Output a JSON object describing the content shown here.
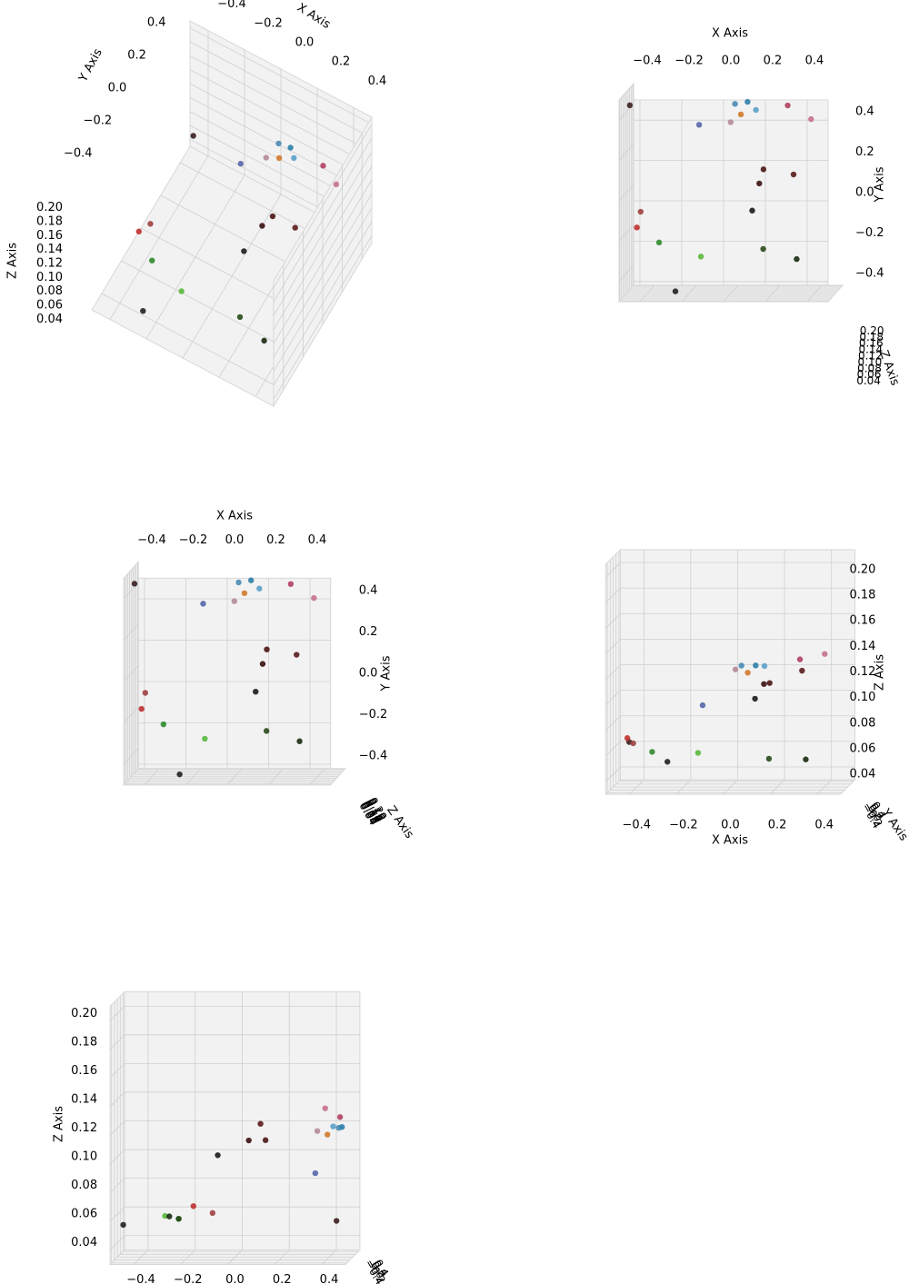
{
  "chart_data": [
    {
      "type": "scatter3d",
      "xlabel": "X Axis",
      "ylabel": "Y Axis",
      "zlabel": "Z Axis",
      "xlim": [
        -0.5,
        0.5
      ],
      "ylim": [
        -0.5,
        0.5
      ],
      "zlim": [
        0.03,
        0.21
      ],
      "xticks": [
        {
          "value": -0.4,
          "label": "−0.4"
        },
        {
          "value": -0.2,
          "label": "−0.2"
        },
        {
          "value": 0,
          "label": "0.0"
        },
        0.2,
        0.4
      ],
      "yticks": [
        {
          "value": -0.4,
          "label": "−0.4"
        },
        {
          "value": -0.2,
          "label": "−0.2"
        },
        {
          "value": 0,
          "label": "0.0"
        },
        0.2,
        0.4
      ],
      "zticks": [
        0.04,
        0.06,
        0.08,
        {
          "value": 0.1,
          "label": "0.10"
        },
        0.12,
        0.14,
        0.16,
        0.18,
        {
          "value": 0.2,
          "label": "0.20"
        }
      ],
      "x": [
        -0.46,
        -0.14,
        0.02,
        0.08,
        0.05,
        0.12,
        0.0,
        0.27,
        0.38,
        0.14,
        0.16,
        0.3,
        -0.43,
        -0.41,
        -0.12,
        -0.32,
        0.18,
        0.34,
        -0.24,
        0.11
      ],
      "y": [
        0.46,
        0.35,
        0.44,
        0.45,
        0.39,
        0.41,
        0.35,
        0.43,
        0.36,
        0.05,
        0.12,
        0.09,
        -0.15,
        -0.07,
        -0.29,
        -0.22,
        -0.25,
        -0.3,
        -0.46,
        -0.08
      ],
      "z": [
        0.06,
        0.09,
        0.12,
        0.12,
        0.115,
        0.12,
        0.118,
        0.125,
        0.13,
        0.11,
        0.11,
        0.12,
        0.07,
        0.065,
        0.06,
        0.06,
        0.055,
        0.055,
        0.055,
        0.1
      ],
      "colors": [
        "#3b1f1f",
        "#5566aa",
        "#4a8ab5",
        "#2e7fa8",
        "#d07a2a",
        "#5aa0c8",
        "#b58a9a",
        "#b04060",
        "#c77090",
        "#3a1010",
        "#4a1515",
        "#5a1a1a",
        "#c03030",
        "#a04040",
        "#5ab83c",
        "#2e8b2e",
        "#2a4a1a",
        "#1a2a10",
        "#202020",
        "#1a1a1a"
      ]
    },
    {
      "type": "scatter3d",
      "xlabel": "X Axis",
      "ylabel": "Y Axis",
      "zlabel": "Z Axis",
      "xlim": [
        -0.5,
        0.5
      ],
      "ylim": [
        -0.5,
        0.5
      ],
      "zlim": [
        0.03,
        0.21
      ],
      "xticks": [
        {
          "value": -0.4,
          "label": "−0.4"
        },
        {
          "value": -0.2,
          "label": "−0.2"
        },
        {
          "value": 0,
          "label": "0.0"
        },
        0.2,
        0.4
      ],
      "yticks": [
        {
          "value": -0.4,
          "label": "−0.4"
        },
        {
          "value": -0.2,
          "label": "−0.2"
        },
        {
          "value": 0,
          "label": "0.0"
        },
        0.2,
        0.4
      ],
      "zticks": [
        0.04,
        0.06,
        0.08,
        {
          "value": 0.1,
          "label": "0.10"
        },
        0.12,
        0.14,
        0.16,
        0.18,
        {
          "value": 0.2,
          "label": "0.20"
        }
      ],
      "x": [
        -0.46,
        -0.14,
        0.02,
        0.08,
        0.05,
        0.12,
        0.0,
        0.27,
        0.38,
        0.14,
        0.16,
        0.3,
        -0.43,
        -0.41,
        -0.12,
        -0.32,
        0.18,
        0.34,
        -0.24,
        0.11
      ],
      "y": [
        0.46,
        0.35,
        0.44,
        0.45,
        0.39,
        0.41,
        0.35,
        0.43,
        0.36,
        0.05,
        0.12,
        0.09,
        -0.15,
        -0.07,
        -0.29,
        -0.22,
        -0.25,
        -0.3,
        -0.46,
        -0.08
      ],
      "z": [
        0.06,
        0.09,
        0.12,
        0.12,
        0.115,
        0.12,
        0.118,
        0.125,
        0.13,
        0.11,
        0.11,
        0.12,
        0.07,
        0.065,
        0.06,
        0.06,
        0.055,
        0.055,
        0.055,
        0.1
      ],
      "colors": [
        "#3b1f1f",
        "#5566aa",
        "#4a8ab5",
        "#2e7fa8",
        "#d07a2a",
        "#5aa0c8",
        "#b58a9a",
        "#b04060",
        "#c77090",
        "#3a1010",
        "#4a1515",
        "#5a1a1a",
        "#c03030",
        "#a04040",
        "#5ab83c",
        "#2e8b2e",
        "#2a4a1a",
        "#1a2a10",
        "#202020",
        "#1a1a1a"
      ]
    },
    {
      "type": "scatter3d",
      "xlabel": "X Axis",
      "ylabel": "Y Axis",
      "zlabel": "Z Axis",
      "xlim": [
        -0.5,
        0.5
      ],
      "ylim": [
        -0.5,
        0.5
      ],
      "zlim": [
        0.03,
        0.21
      ],
      "xticks": [
        {
          "value": -0.4,
          "label": "−0.4"
        },
        {
          "value": -0.2,
          "label": "−0.2"
        },
        {
          "value": 0,
          "label": "0.0"
        },
        0.2,
        0.4
      ],
      "yticks": [
        {
          "value": -0.4,
          "label": "−0.4"
        },
        {
          "value": -0.2,
          "label": "−0.2"
        },
        {
          "value": 0,
          "label": "0.0"
        },
        0.2,
        0.4
      ],
      "zticks": [
        0.04,
        0.06,
        0.08,
        {
          "value": 0.1,
          "label": "0.10"
        },
        0.12,
        0.14,
        0.16,
        0.18,
        {
          "value": 0.2,
          "label": "0.20"
        }
      ],
      "x": [
        -0.46,
        -0.14,
        0.02,
        0.08,
        0.05,
        0.12,
        0.0,
        0.27,
        0.38,
        0.14,
        0.16,
        0.3,
        -0.43,
        -0.41,
        -0.12,
        -0.32,
        0.18,
        0.34,
        -0.24,
        0.11
      ],
      "y": [
        0.46,
        0.35,
        0.44,
        0.45,
        0.39,
        0.41,
        0.35,
        0.43,
        0.36,
        0.05,
        0.12,
        0.09,
        -0.15,
        -0.07,
        -0.29,
        -0.22,
        -0.25,
        -0.3,
        -0.46,
        -0.08
      ],
      "z": [
        0.06,
        0.09,
        0.12,
        0.12,
        0.115,
        0.12,
        0.118,
        0.125,
        0.13,
        0.11,
        0.11,
        0.12,
        0.07,
        0.065,
        0.06,
        0.06,
        0.055,
        0.055,
        0.055,
        0.1
      ],
      "colors": [
        "#3b1f1f",
        "#5566aa",
        "#4a8ab5",
        "#2e7fa8",
        "#d07a2a",
        "#5aa0c8",
        "#b58a9a",
        "#b04060",
        "#c77090",
        "#3a1010",
        "#4a1515",
        "#5a1a1a",
        "#c03030",
        "#a04040",
        "#5ab83c",
        "#2e8b2e",
        "#2a4a1a",
        "#1a2a10",
        "#202020",
        "#1a1a1a"
      ]
    },
    {
      "type": "scatter3d",
      "xlabel": "X Axis",
      "ylabel": "Y Axis",
      "zlabel": "Z Axis",
      "xlim": [
        -0.5,
        0.5
      ],
      "ylim": [
        -0.5,
        0.5
      ],
      "zlim": [
        0.03,
        0.21
      ],
      "xticks": [
        {
          "value": -0.4,
          "label": "−0.4"
        },
        {
          "value": -0.2,
          "label": "−0.2"
        },
        {
          "value": 0,
          "label": "0.0"
        },
        0.2,
        0.4
      ],
      "yticks": [
        {
          "value": -0.4,
          "label": "−0.4"
        },
        {
          "value": -0.2,
          "label": "−0.2"
        },
        {
          "value": 0,
          "label": "0.0"
        },
        0.2,
        0.4
      ],
      "zticks": [
        0.04,
        0.06,
        0.08,
        {
          "value": 0.1,
          "label": "0.10"
        },
        0.12,
        0.14,
        0.16,
        0.18,
        {
          "value": 0.2,
          "label": "0.20"
        }
      ],
      "x": [
        -0.46,
        -0.14,
        0.02,
        0.08,
        0.05,
        0.12,
        0.0,
        0.27,
        0.38,
        0.14,
        0.16,
        0.3,
        -0.43,
        -0.41,
        -0.12,
        -0.32,
        0.18,
        0.34,
        -0.24,
        0.11
      ],
      "y": [
        0.46,
        0.35,
        0.44,
        0.45,
        0.39,
        0.41,
        0.35,
        0.43,
        0.36,
        0.05,
        0.12,
        0.09,
        -0.15,
        -0.07,
        -0.29,
        -0.22,
        -0.25,
        -0.3,
        -0.46,
        -0.08
      ],
      "z": [
        0.06,
        0.09,
        0.12,
        0.12,
        0.115,
        0.12,
        0.118,
        0.125,
        0.13,
        0.11,
        0.11,
        0.12,
        0.07,
        0.065,
        0.06,
        0.06,
        0.055,
        0.055,
        0.055,
        0.1
      ],
      "colors": [
        "#3b1f1f",
        "#5566aa",
        "#4a8ab5",
        "#2e7fa8",
        "#d07a2a",
        "#5aa0c8",
        "#b58a9a",
        "#b04060",
        "#c77090",
        "#3a1010",
        "#4a1515",
        "#5a1a1a",
        "#c03030",
        "#a04040",
        "#5ab83c",
        "#2e8b2e",
        "#2a4a1a",
        "#1a2a10",
        "#202020",
        "#1a1a1a"
      ]
    },
    {
      "type": "scatter3d",
      "zlabel": "Z Axis",
      "xlim": [
        -0.5,
        0.5
      ],
      "ylim": [
        -0.5,
        0.5
      ],
      "zlim": [
        0.03,
        0.21
      ],
      "xticks": [
        {
          "value": -0.4,
          "label": "−0.4"
        },
        {
          "value": -0.2,
          "label": "−0.2"
        },
        {
          "value": 0,
          "label": "0.0"
        },
        0.2,
        0.4
      ],
      "yticks": [
        {
          "value": -0.4,
          "label": "−0.4"
        },
        {
          "value": -0.2,
          "label": "−0.2"
        },
        {
          "value": 0,
          "label": "0.0"
        },
        0.2,
        0.4
      ],
      "zticks": [
        0.04,
        0.06,
        0.08,
        {
          "value": 0.1,
          "label": "0.10"
        },
        0.12,
        0.14,
        0.16,
        0.18,
        {
          "value": 0.2,
          "label": "0.20"
        }
      ],
      "x": [
        -0.46,
        -0.14,
        0.02,
        0.08,
        0.05,
        0.12,
        0.0,
        0.27,
        0.38,
        0.14,
        0.16,
        0.3,
        -0.43,
        -0.41,
        -0.12,
        -0.32,
        0.18,
        0.34,
        -0.24,
        0.11
      ],
      "y": [
        0.46,
        0.35,
        0.44,
        0.45,
        0.39,
        0.41,
        0.35,
        0.43,
        0.36,
        0.05,
        0.12,
        0.09,
        -0.15,
        -0.07,
        -0.29,
        -0.22,
        -0.25,
        -0.3,
        -0.46,
        -0.08
      ],
      "z": [
        0.06,
        0.09,
        0.12,
        0.12,
        0.115,
        0.12,
        0.118,
        0.125,
        0.13,
        0.11,
        0.11,
        0.12,
        0.07,
        0.065,
        0.06,
        0.06,
        0.055,
        0.055,
        0.055,
        0.1
      ],
      "colors": [
        "#3b1f1f",
        "#5566aa",
        "#4a8ab5",
        "#2e7fa8",
        "#d07a2a",
        "#5aa0c8",
        "#b58a9a",
        "#b04060",
        "#c77090",
        "#3a1010",
        "#4a1515",
        "#5a1a1a",
        "#c03030",
        "#a04040",
        "#5ab83c",
        "#2e8b2e",
        "#2a4a1a",
        "#1a2a10",
        "#202020",
        "#1a1a1a"
      ]
    }
  ]
}
